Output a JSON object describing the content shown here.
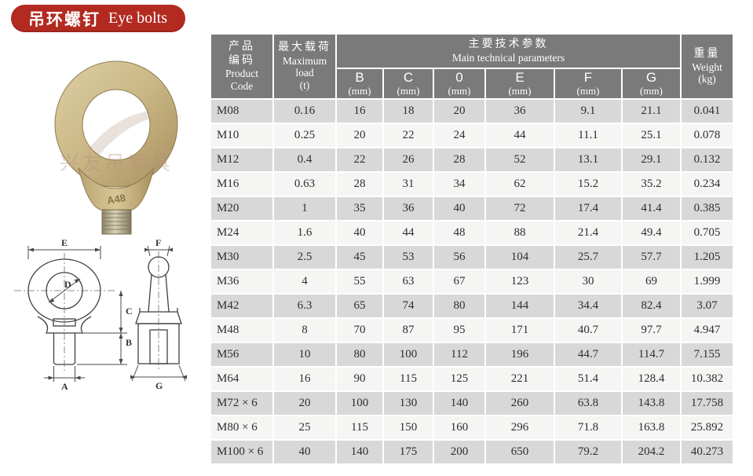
{
  "banner": {
    "title_zh": "吊环螺钉",
    "title_en": "Eye bolts"
  },
  "colors": {
    "banner_red": "#b22a20",
    "header_gray": "#7a7a7a",
    "row_gray": "#d8d8d8",
    "row_light": "#f5f5f4",
    "bolt_brass": "#c9b684"
  },
  "photo": {
    "stamp": "A48",
    "watermark": "兴友吊索具"
  },
  "drawing": {
    "labels": {
      "e": "E",
      "d": "D",
      "c": "C",
      "b": "B",
      "a": "A",
      "f": "F",
      "g": "G"
    }
  },
  "table": {
    "header": {
      "product_code": {
        "zh": "产品\n编码",
        "en": "Product\nCode"
      },
      "max_load": {
        "zh": "最大载荷",
        "en": "Maximum\nload\n(t)"
      },
      "parameters": {
        "zh": "主要技术参数",
        "en": "Main technical parameters"
      },
      "weight": {
        "zh": "重量",
        "en": "Weight\n(kg)"
      },
      "param_columns": [
        {
          "letter": "B",
          "unit": "(mm)"
        },
        {
          "letter": "C",
          "unit": "(mm)"
        },
        {
          "letter": "0",
          "unit": "(mm)"
        },
        {
          "letter": "E",
          "unit": "(mm)"
        },
        {
          "letter": "F",
          "unit": "(mm)"
        },
        {
          "letter": "G",
          "unit": "(mm)"
        }
      ]
    },
    "rows": [
      [
        "M08",
        "0.16",
        "16",
        "18",
        "20",
        "36",
        "9.1",
        "21.1",
        "0.041"
      ],
      [
        "M10",
        "0.25",
        "20",
        "22",
        "24",
        "44",
        "11.1",
        "25.1",
        "0.078"
      ],
      [
        "M12",
        "0.4",
        "22",
        "26",
        "28",
        "52",
        "13.1",
        "29.1",
        "0.132"
      ],
      [
        "M16",
        "0.63",
        "28",
        "31",
        "34",
        "62",
        "15.2",
        "35.2",
        "0.234"
      ],
      [
        "M20",
        "1",
        "35",
        "36",
        "40",
        "72",
        "17.4",
        "41.4",
        "0.385"
      ],
      [
        "M24",
        "1.6",
        "40",
        "44",
        "48",
        "88",
        "21.4",
        "49.4",
        "0.705"
      ],
      [
        "M30",
        "2.5",
        "45",
        "53",
        "56",
        "104",
        "25.7",
        "57.7",
        "1.205"
      ],
      [
        "M36",
        "4",
        "55",
        "63",
        "67",
        "123",
        "30",
        "69",
        "1.999"
      ],
      [
        "M42",
        "6.3",
        "65",
        "74",
        "80",
        "144",
        "34.4",
        "82.4",
        "3.07"
      ],
      [
        "M48",
        "8",
        "70",
        "87",
        "95",
        "171",
        "40.7",
        "97.7",
        "4.947"
      ],
      [
        "M56",
        "10",
        "80",
        "100",
        "112",
        "196",
        "44.7",
        "114.7",
        "7.155"
      ],
      [
        "M64",
        "16",
        "90",
        "115",
        "125",
        "221",
        "51.4",
        "128.4",
        "10.382"
      ],
      [
        "M72 × 6",
        "20",
        "100",
        "130",
        "140",
        "260",
        "63.8",
        "143.8",
        "17.758"
      ],
      [
        "M80 × 6",
        "25",
        "115",
        "150",
        "160",
        "296",
        "71.8",
        "163.8",
        "25.892"
      ],
      [
        "M100 × 6",
        "40",
        "140",
        "175",
        "200",
        "650",
        "79.2",
        "204.2",
        "40.273"
      ]
    ]
  }
}
